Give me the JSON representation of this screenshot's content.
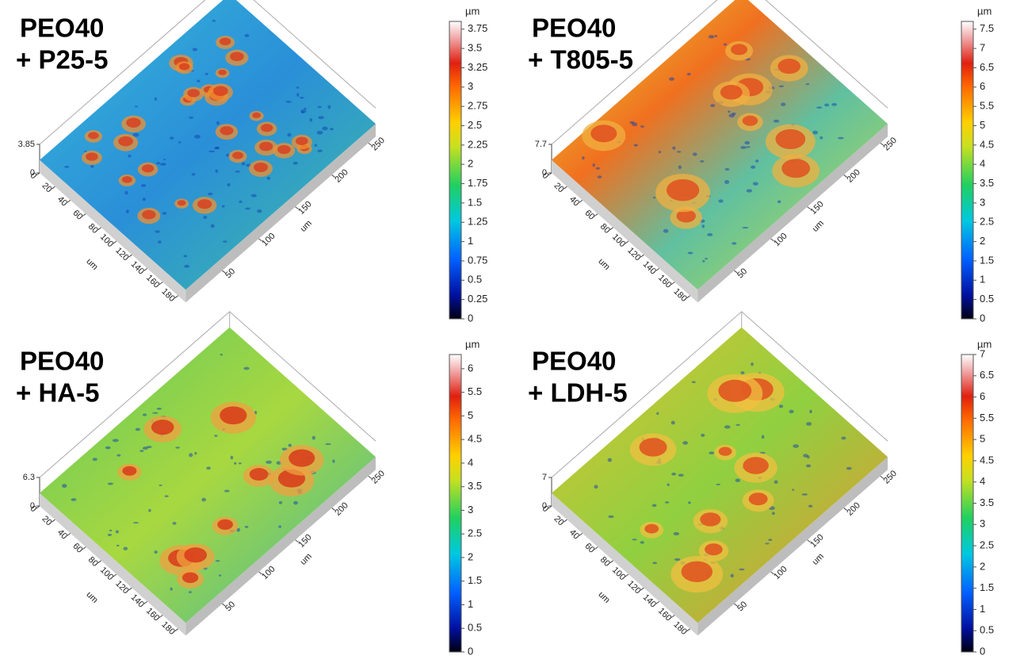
{
  "chart_data": [
    {
      "type": "surface",
      "title": "PEO40",
      "subtitle": "+ P25-5",
      "xlabel": "um",
      "ylabel": "um",
      "xlim": [
        0,
        190
      ],
      "xticks": [
        0,
        20,
        40,
        60,
        80,
        100,
        120,
        140,
        160,
        180
      ],
      "ylim": [
        0,
        260
      ],
      "yticks": [
        50,
        100,
        150,
        200,
        250
      ],
      "zlim": [
        0,
        3.85
      ],
      "zticks": [
        0,
        3.85
      ],
      "colorbar_label": "µm",
      "colorbar_lim": [
        0,
        3.85
      ],
      "colorbar_ticks": [
        0,
        0.25,
        0.5,
        0.75,
        1,
        1.25,
        1.5,
        1.75,
        2,
        2.25,
        2.5,
        2.75,
        3,
        3.25,
        3.5,
        3.75
      ]
    },
    {
      "type": "surface",
      "title": "PEO40",
      "subtitle": "+ T805-5",
      "xlabel": "um",
      "ylabel": "um",
      "xlim": [
        0,
        190
      ],
      "xticks": [
        0,
        20,
        40,
        60,
        80,
        100,
        120,
        140,
        160,
        180
      ],
      "ylim": [
        0,
        260
      ],
      "yticks": [
        50,
        100,
        150,
        200,
        250
      ],
      "zlim": [
        0,
        7.7
      ],
      "zticks": [
        0,
        7.7
      ],
      "colorbar_label": "µm",
      "colorbar_lim": [
        0,
        7.7
      ],
      "colorbar_ticks": [
        0,
        0.5,
        1,
        1.5,
        2,
        2.5,
        3,
        3.5,
        4,
        4.5,
        5,
        5.5,
        6,
        6.5,
        7,
        7.5
      ]
    },
    {
      "type": "surface",
      "title": "PEO40",
      "subtitle": "+ HA-5",
      "xlabel": "um",
      "ylabel": "um",
      "xlim": [
        0,
        190
      ],
      "xticks": [
        0,
        20,
        40,
        60,
        80,
        100,
        120,
        140,
        160,
        180
      ],
      "ylim": [
        0,
        260
      ],
      "yticks": [
        50,
        100,
        150,
        200,
        250
      ],
      "zlim": [
        0,
        6.3
      ],
      "zticks": [
        0,
        6.3
      ],
      "colorbar_label": "µm",
      "colorbar_lim": [
        0,
        6.3
      ],
      "colorbar_ticks": [
        0,
        0.5,
        1,
        1.5,
        2,
        2.5,
        3,
        3.5,
        4,
        4.5,
        5,
        5.5,
        6
      ]
    },
    {
      "type": "surface",
      "title": "PEO40",
      "subtitle": "+ LDH-5",
      "xlabel": "um",
      "ylabel": "um",
      "xlim": [
        0,
        190
      ],
      "xticks": [
        0,
        20,
        40,
        60,
        80,
        100,
        120,
        140,
        160,
        180
      ],
      "ylim": [
        0,
        260
      ],
      "yticks": [
        50,
        100,
        150,
        200,
        250
      ],
      "zlim": [
        0,
        7
      ],
      "zticks": [
        0,
        7
      ],
      "colorbar_label": "µm",
      "colorbar_lim": [
        0,
        7
      ],
      "colorbar_ticks": [
        0,
        0.5,
        1,
        1.5,
        2,
        2.5,
        3,
        3.5,
        4,
        4.5,
        5,
        5.5,
        6,
        6.5,
        7
      ]
    }
  ]
}
